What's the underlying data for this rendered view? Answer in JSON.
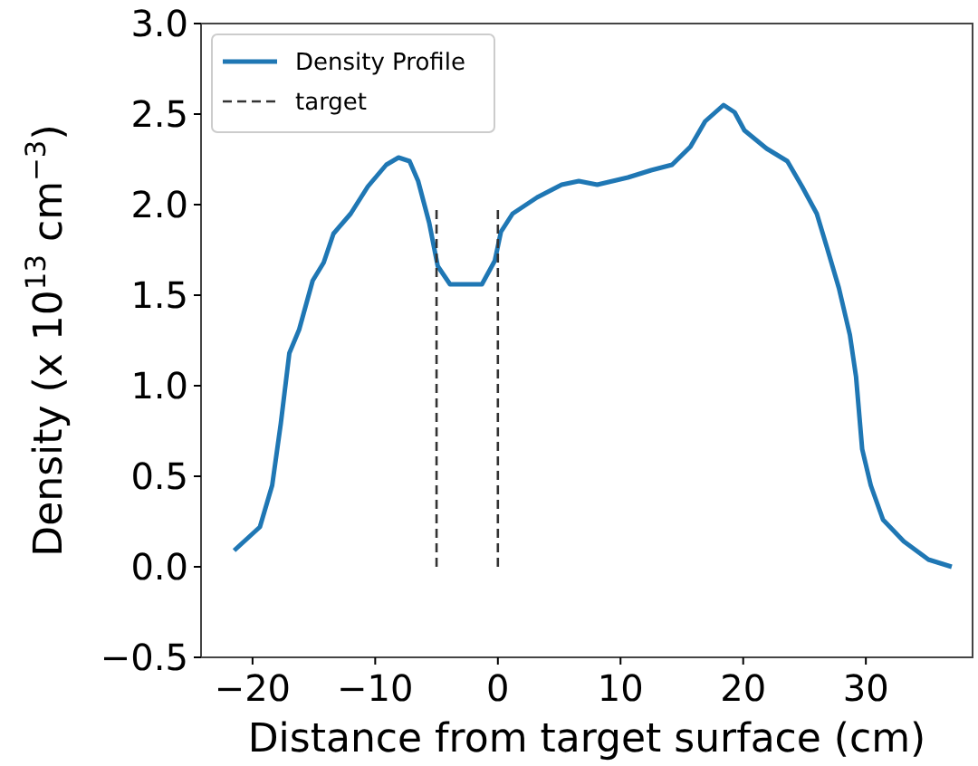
{
  "chart_data": {
    "type": "line",
    "xlabel": "Distance from target surface (cm)",
    "ylabel": "Density (x 10$^{13}$ cm$^{−3}$)",
    "xlim": [
      -24.2,
      38.7
    ],
    "ylim": [
      -0.5,
      3.0
    ],
    "xticks": [
      {
        "value": -20,
        "label": "−20"
      },
      {
        "value": -10,
        "label": "−10"
      },
      0,
      10,
      20,
      30
    ],
    "yticks": [
      {
        "value": -0.5,
        "label": "−0.5"
      },
      {
        "value": 0,
        "label": "0.0"
      },
      0.5,
      {
        "value": 1,
        "label": "1.0"
      },
      1.5,
      {
        "value": 2,
        "label": "2.0"
      },
      2.5,
      {
        "value": 3,
        "label": "3.0"
      }
    ],
    "legend": "top left",
    "grid": false,
    "series": [
      {
        "name": "Density Profile",
        "color": "#1f77b4",
        "line_style": "solid",
        "x": [
          -21.5,
          -19.4,
          -18.4,
          -17.7,
          -17.0,
          -16.2,
          -15.1,
          -14.2,
          -13.4,
          -12.0,
          -10.6,
          -9.1,
          -8.1,
          -7.2,
          -6.5,
          -5.6,
          -4.9,
          -3.9,
          -1.3,
          -0.25,
          0.25,
          1.2,
          3.2,
          5.2,
          6.6,
          8.1,
          10.6,
          12.5,
          14.2,
          15.7,
          16.9,
          18.4,
          19.3,
          20.1,
          21.9,
          23.6,
          24.8,
          26.0,
          26.8,
          27.8,
          28.7,
          29.2,
          29.7,
          30.4,
          31.4,
          33.1,
          35.1,
          37.0
        ],
        "values": [
          0.09,
          0.22,
          0.45,
          0.79,
          1.18,
          1.31,
          1.58,
          1.68,
          1.84,
          1.95,
          2.1,
          2.22,
          2.26,
          2.24,
          2.13,
          1.9,
          1.66,
          1.56,
          1.56,
          1.69,
          1.85,
          1.95,
          2.04,
          2.11,
          2.13,
          2.11,
          2.15,
          2.19,
          2.22,
          2.32,
          2.46,
          2.55,
          2.51,
          2.41,
          2.31,
          2.24,
          2.1,
          1.95,
          1.77,
          1.54,
          1.28,
          1.05,
          0.65,
          0.45,
          0.26,
          0.14,
          0.04,
          0.0
        ]
      },
      {
        "name": "target",
        "color": "#333333",
        "line_style": "dashed",
        "x": [
          -5,
          -5,
          null,
          0,
          0
        ],
        "values": [
          0,
          2.0,
          null,
          0,
          2.0
        ]
      }
    ]
  }
}
